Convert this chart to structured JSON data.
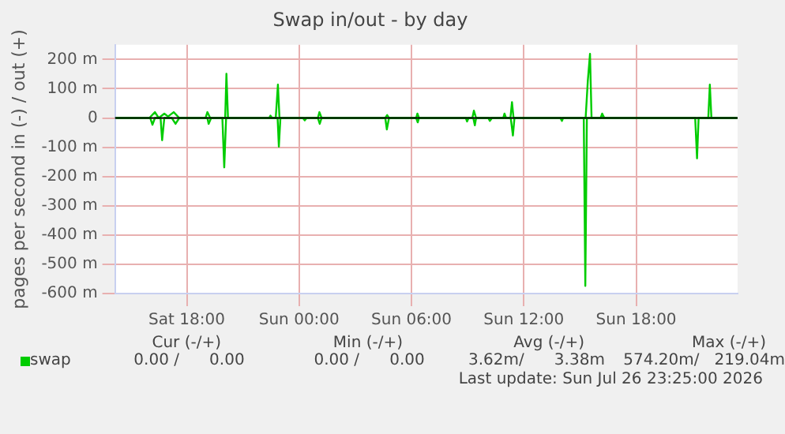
{
  "chart_data": {
    "type": "line",
    "title": "Swap in/out - by day",
    "ylabel": "pages per second in (-) / out (+)",
    "xlim": [
      "2026-07-25T14:10",
      "2026-07-26T23:25"
    ],
    "xticks": [
      {
        "value": "2026-07-25T18:00",
        "label": "Sat 18:00"
      },
      {
        "value": "2026-07-26T00:00",
        "label": "Sun 00:00"
      },
      {
        "value": "2026-07-26T06:00",
        "label": "Sun 06:00"
      },
      {
        "value": "2026-07-26T12:00",
        "label": "Sun 12:00"
      },
      {
        "value": "2026-07-26T18:00",
        "label": "Sun 18:00"
      }
    ],
    "ylim": [
      -600,
      250
    ],
    "yticks": [
      {
        "value": -600,
        "label": "-600 m"
      },
      {
        "value": -500,
        "label": "-500 m"
      },
      {
        "value": -400,
        "label": "-400 m"
      },
      {
        "value": -300,
        "label": "-300 m"
      },
      {
        "value": -200,
        "label": "-200 m"
      },
      {
        "value": -100,
        "label": "-100 m"
      },
      0,
      {
        "value": 100,
        "label": "100 m"
      },
      {
        "value": 200,
        "label": "200 m"
      }
    ],
    "grid": true,
    "legend": "bottom left",
    "marker": "none",
    "line_style": "solid",
    "ref_lines": [
      {
        "axis": "y",
        "value": 0,
        "color": "#000000"
      }
    ],
    "series": [
      {
        "name": "swap",
        "color": "#00cc00",
        "x": [
          "2026-07-25T14:12",
          "2026-07-25T16:00",
          "2026-07-25T16:18",
          "2026-07-25T16:30",
          "2026-07-25T16:48",
          "2026-07-25T17:00",
          "2026-07-25T17:18",
          "2026-07-25T17:36",
          "2026-07-25T19:00",
          "2026-07-25T19:06",
          "2026-07-25T19:15",
          "2026-07-25T20:03",
          "2026-07-25T20:07",
          "2026-07-25T20:12",
          "2026-07-25T22:24",
          "2026-07-25T22:28",
          "2026-07-25T22:33",
          "2026-07-25T22:45",
          "2026-07-25T22:52",
          "2026-07-25T22:57",
          "2026-07-26T01:00",
          "2026-07-26T01:05",
          "2026-07-26T01:12",
          "2026-07-26T04:36",
          "2026-07-26T04:42",
          "2026-07-26T04:48",
          "2026-07-26T06:15",
          "2026-07-26T06:19",
          "2026-07-26T06:24",
          "2026-07-26T09:15",
          "2026-07-26T09:20",
          "2026-07-26T09:27",
          "2026-07-26T10:54",
          "2026-07-26T10:58",
          "2026-07-26T11:03",
          "2026-07-26T11:17",
          "2026-07-26T11:22",
          "2026-07-26T11:27",
          "2026-07-26T15:18",
          "2026-07-26T15:25",
          "2026-07-26T15:32",
          "2026-07-26T15:37",
          "2026-07-26T16:06",
          "2026-07-26T16:11",
          "2026-07-26T16:18",
          "2026-07-26T21:51",
          "2026-07-26T21:56",
          "2026-07-26T22:01",
          "2026-07-26T23:24"
        ],
        "values": [
          0,
          0,
          20,
          0,
          15,
          5,
          20,
          0,
          0,
          20,
          0,
          0,
          151,
          0,
          0,
          8,
          0,
          0,
          114,
          0,
          0,
          20,
          0,
          0,
          10,
          0,
          0,
          15,
          0,
          0,
          25,
          0,
          0,
          15,
          0,
          0,
          54,
          0,
          0,
          127,
          219,
          0,
          0,
          15,
          0,
          0,
          114,
          0,
          0
        ]
      },
      {
        "color": "#00cc00",
        "x": [
          "2026-07-25T14:12",
          "2026-07-25T16:03",
          "2026-07-25T16:10",
          "2026-07-25T16:18",
          "2026-07-25T16:36",
          "2026-07-25T16:41",
          "2026-07-25T16:48",
          "2026-07-25T17:12",
          "2026-07-25T17:24",
          "2026-07-25T17:36",
          "2026-07-25T19:06",
          "2026-07-25T19:10",
          "2026-07-25T19:18",
          "2026-07-25T19:54",
          "2026-07-25T20:00",
          "2026-07-25T20:06",
          "2026-07-25T22:51",
          "2026-07-25T22:55",
          "2026-07-25T23:00",
          "2026-07-26T00:12",
          "2026-07-26T00:18",
          "2026-07-26T00:24",
          "2026-07-26T01:00",
          "2026-07-26T01:06",
          "2026-07-26T01:12",
          "2026-07-26T04:36",
          "2026-07-26T04:41",
          "2026-07-26T04:48",
          "2026-07-26T06:15",
          "2026-07-26T06:20",
          "2026-07-26T06:24",
          "2026-07-26T08:54",
          "2026-07-26T08:58",
          "2026-07-26T09:03",
          "2026-07-26T09:18",
          "2026-07-26T09:23",
          "2026-07-26T09:27",
          "2026-07-26T10:06",
          "2026-07-26T10:11",
          "2026-07-26T10:18",
          "2026-07-26T11:18",
          "2026-07-26T11:25",
          "2026-07-26T11:30",
          "2026-07-26T13:57",
          "2026-07-26T14:02",
          "2026-07-26T14:06",
          "2026-07-26T15:12",
          "2026-07-26T15:17",
          "2026-07-26T15:22",
          "2026-07-26T21:09",
          "2026-07-26T21:15",
          "2026-07-26T21:20",
          "2026-07-26T23:24"
        ],
        "values": [
          0,
          0,
          -23,
          0,
          0,
          -76,
          0,
          0,
          -20,
          0,
          0,
          -20,
          0,
          0,
          -169,
          0,
          0,
          -98,
          0,
          0,
          -8,
          0,
          0,
          -20,
          0,
          0,
          -39,
          0,
          0,
          -15,
          0,
          0,
          -12,
          0,
          0,
          -25,
          0,
          0,
          -10,
          0,
          0,
          -60,
          0,
          0,
          -10,
          0,
          0,
          -574,
          0,
          0,
          -138,
          0,
          0
        ]
      }
    ],
    "annotations": [
      "Cur (-/+)",
      "Min (-/+)",
      "Avg (-/+)",
      "Max (-/+)",
      "0.00 /      0.00",
      "0.00 /      0.00",
      "3.62m/      3.38m",
      "574.20m/   219.04m",
      "Last update: Sun Jul 26 23:25:00 2026"
    ]
  }
}
